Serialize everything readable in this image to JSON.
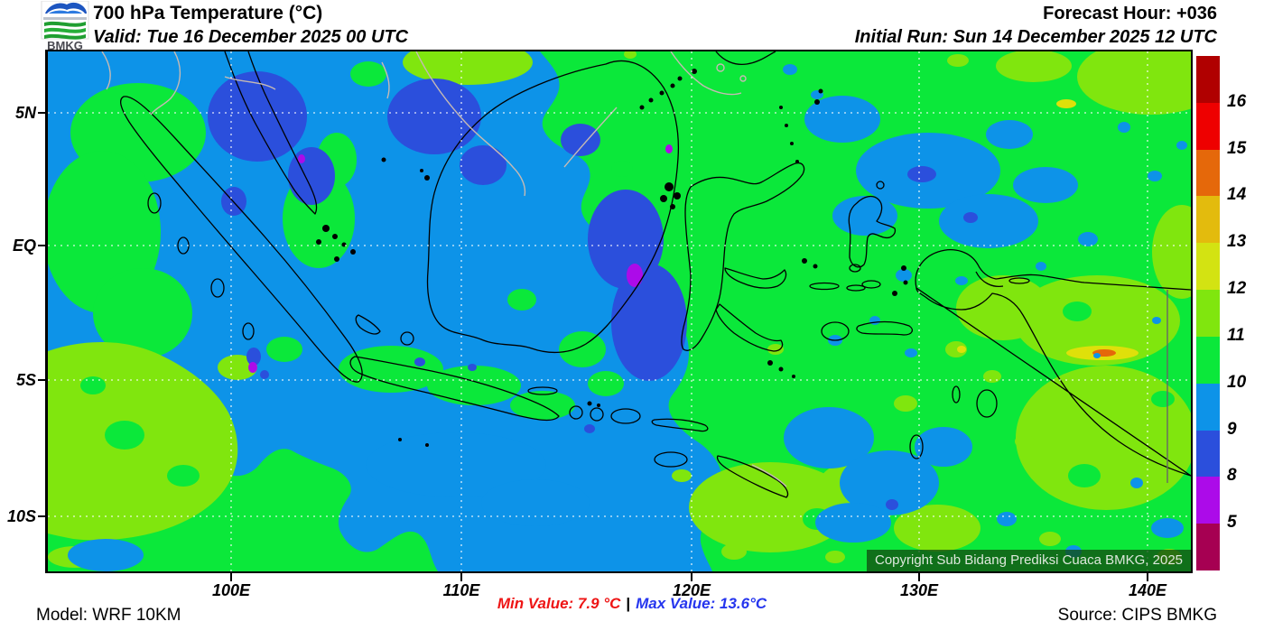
{
  "header": {
    "logo": "BMKG",
    "title": "700 hPa Temperature (°C)",
    "valid": "Valid: Tue 16 December 2025 00 UTC",
    "forecast_hour": "Forecast Hour: +036",
    "initial_run": "Initial Run: Sun 14 December 2025 12 UTC"
  },
  "map": {
    "copyright": "Copyright Sub Bidang Prediksi Cuaca BMKG, 2025",
    "lat_labels": [
      "5N",
      "EQ",
      "5S",
      "10S"
    ],
    "lon_labels": [
      "100E",
      "110E",
      "120E",
      "130E",
      "140E"
    ]
  },
  "colorbar": {
    "segments": [
      {
        "color": "#B00000",
        "label": "16"
      },
      {
        "color": "#EE0000",
        "label": "15"
      },
      {
        "color": "#E5680A",
        "label": "14"
      },
      {
        "color": "#E3BB0D",
        "label": "13"
      },
      {
        "color": "#D3E312",
        "label": "12"
      },
      {
        "color": "#80E60E",
        "label": "11"
      },
      {
        "color": "#0BE83A",
        "label": "10"
      },
      {
        "color": "#0D93E8",
        "label": "9"
      },
      {
        "color": "#2B4FDC",
        "label": "8"
      },
      {
        "color": "#AC0BE9",
        "label": "5"
      },
      {
        "color": "#A60052",
        "label": ""
      }
    ]
  },
  "field_colors": {
    "green": "#0BE83A",
    "light_blue": "#0D93E8",
    "royal_blue": "#2B4FDC",
    "chartreuse": "#80E60E",
    "yellow": "#DFE00A",
    "orange": "#E5680A",
    "violet": "#AC0BE9"
  },
  "footer": {
    "model": "Model: WRF 10KM",
    "min": "Min Value: 7.9 °C",
    "divider": "|",
    "max": "Max Value: 13.6°C",
    "source": "Source: CIPS BMKG"
  }
}
